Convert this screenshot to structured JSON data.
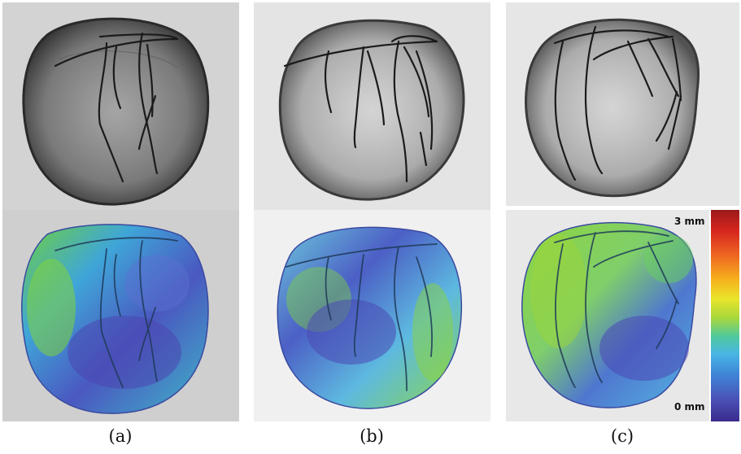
{
  "figure": {
    "panels": [
      {
        "caption": "(a)"
      },
      {
        "caption": "(b)"
      },
      {
        "caption": "(c)"
      }
    ],
    "colorbar": {
      "max_label": "3 mm",
      "min_label": "0 mm",
      "min_value": 0,
      "max_value": 3,
      "unit": "mm"
    }
  }
}
